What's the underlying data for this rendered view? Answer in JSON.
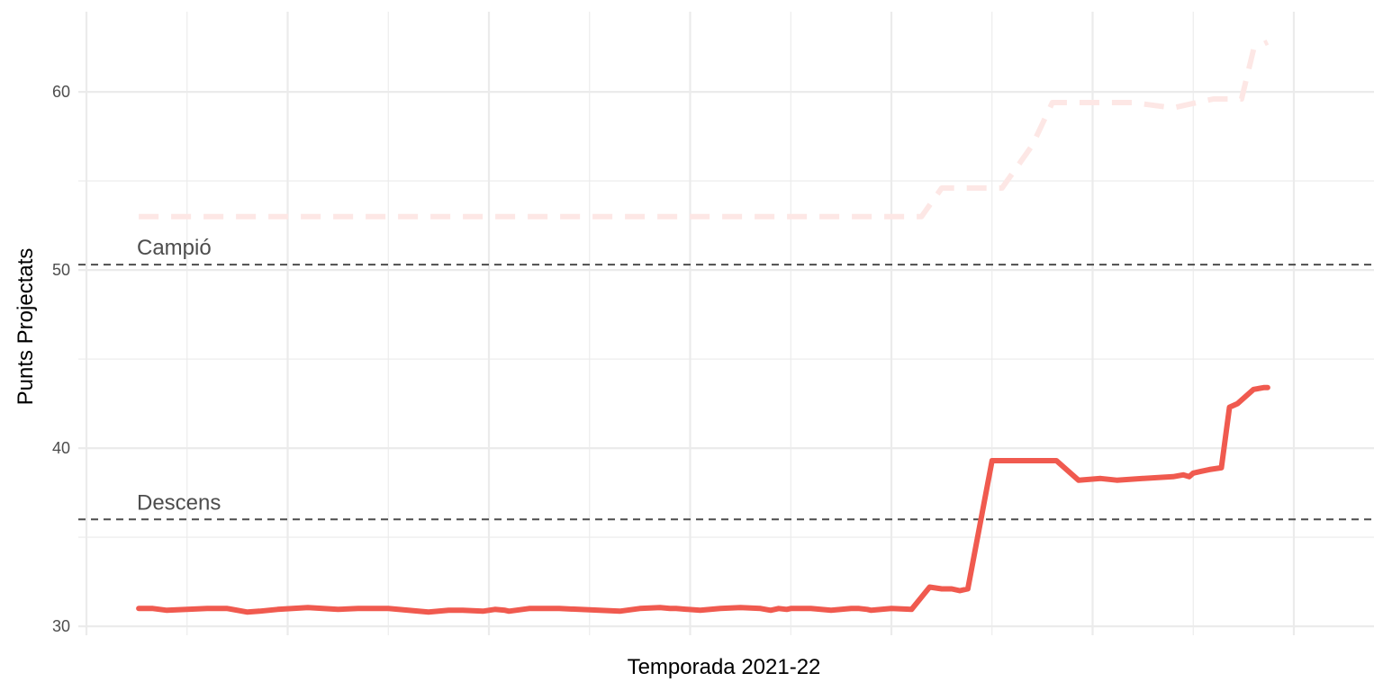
{
  "chart_data": {
    "type": "line",
    "title": "",
    "xlabel": "Temporada 2021-22",
    "ylabel": "Punts Projectats",
    "ylim": [
      29.5,
      64.5
    ],
    "yticks": [
      30,
      40,
      50,
      60
    ],
    "xlim": [
      0,
      60
    ],
    "grid": true,
    "x_tick_labels_visible": false,
    "reference_lines": [
      {
        "label": "Campió",
        "value": 50.3
      },
      {
        "label": "Descens",
        "value": 36.0
      }
    ],
    "colors": {
      "series": "#f05a4f",
      "series_faded": "#fde7e5",
      "reference": "#4d4d4d",
      "grid": "#ebebeb"
    },
    "series": [
      {
        "style": "solid",
        "x": [
          2.6,
          3.3,
          4.0,
          5.0,
          6.0,
          7.0,
          8.0,
          8.6,
          9.5,
          11.0,
          12.5,
          13.5,
          15.0,
          16.0,
          17.0,
          18.0,
          18.7,
          19.7,
          20.3,
          20.8,
          21.0,
          22.0,
          23.5,
          24.5,
          25.5,
          26.5,
          27.5,
          28.5,
          29.0,
          29.3,
          30.5,
          31.5,
          32.5,
          33.5,
          34.0,
          34.4,
          34.8,
          35.0,
          36.0,
          37.0,
          38.0,
          38.4,
          38.8,
          39.0,
          40.0,
          41.0,
          41.9,
          42.5,
          43.0,
          43.4,
          43.8,
          45.0,
          46.0,
          47.0,
          48.2,
          49.3,
          50.4,
          51.2,
          52.5,
          54.0,
          54.5,
          54.8,
          55.0,
          55.4,
          55.8,
          56.4,
          56.8,
          57.2,
          57.4,
          58.0,
          58.5,
          58.7
        ],
        "values": [
          31.0,
          31.0,
          30.9,
          30.95,
          31.0,
          31.0,
          30.8,
          30.85,
          30.95,
          31.05,
          30.95,
          31.0,
          31.0,
          30.9,
          30.8,
          30.9,
          30.9,
          30.85,
          30.95,
          30.9,
          30.85,
          31.0,
          31.0,
          30.95,
          30.9,
          30.85,
          31.0,
          31.05,
          31.0,
          31.0,
          30.9,
          31.0,
          31.05,
          31.0,
          30.9,
          31.0,
          30.95,
          31.0,
          31.0,
          30.9,
          31.0,
          31.0,
          30.95,
          30.9,
          31.0,
          30.95,
          32.2,
          32.1,
          32.1,
          32.0,
          32.1,
          39.3,
          39.3,
          39.3,
          39.3,
          38.2,
          38.3,
          38.2,
          38.3,
          38.4,
          38.5,
          38.4,
          38.6,
          38.7,
          38.8,
          38.9,
          42.3,
          42.5,
          42.7,
          43.3,
          43.4,
          43.4
        ]
      },
      {
        "style": "dashed",
        "x": [
          2.6,
          6.0,
          10.0,
          14.0,
          18.0,
          22.0,
          26.0,
          30.0,
          34.0,
          38.0,
          41.5,
          42.5,
          45.5,
          47.0,
          48.0,
          52.0,
          54.0,
          56.0,
          57.4,
          58.0,
          58.7
        ],
        "values": [
          53.0,
          53.0,
          53.0,
          53.0,
          53.0,
          53.0,
          53.0,
          53.0,
          53.0,
          53.0,
          53.0,
          54.6,
          54.6,
          57.0,
          59.4,
          59.4,
          59.1,
          59.6,
          59.6,
          62.4,
          62.8
        ]
      }
    ]
  }
}
